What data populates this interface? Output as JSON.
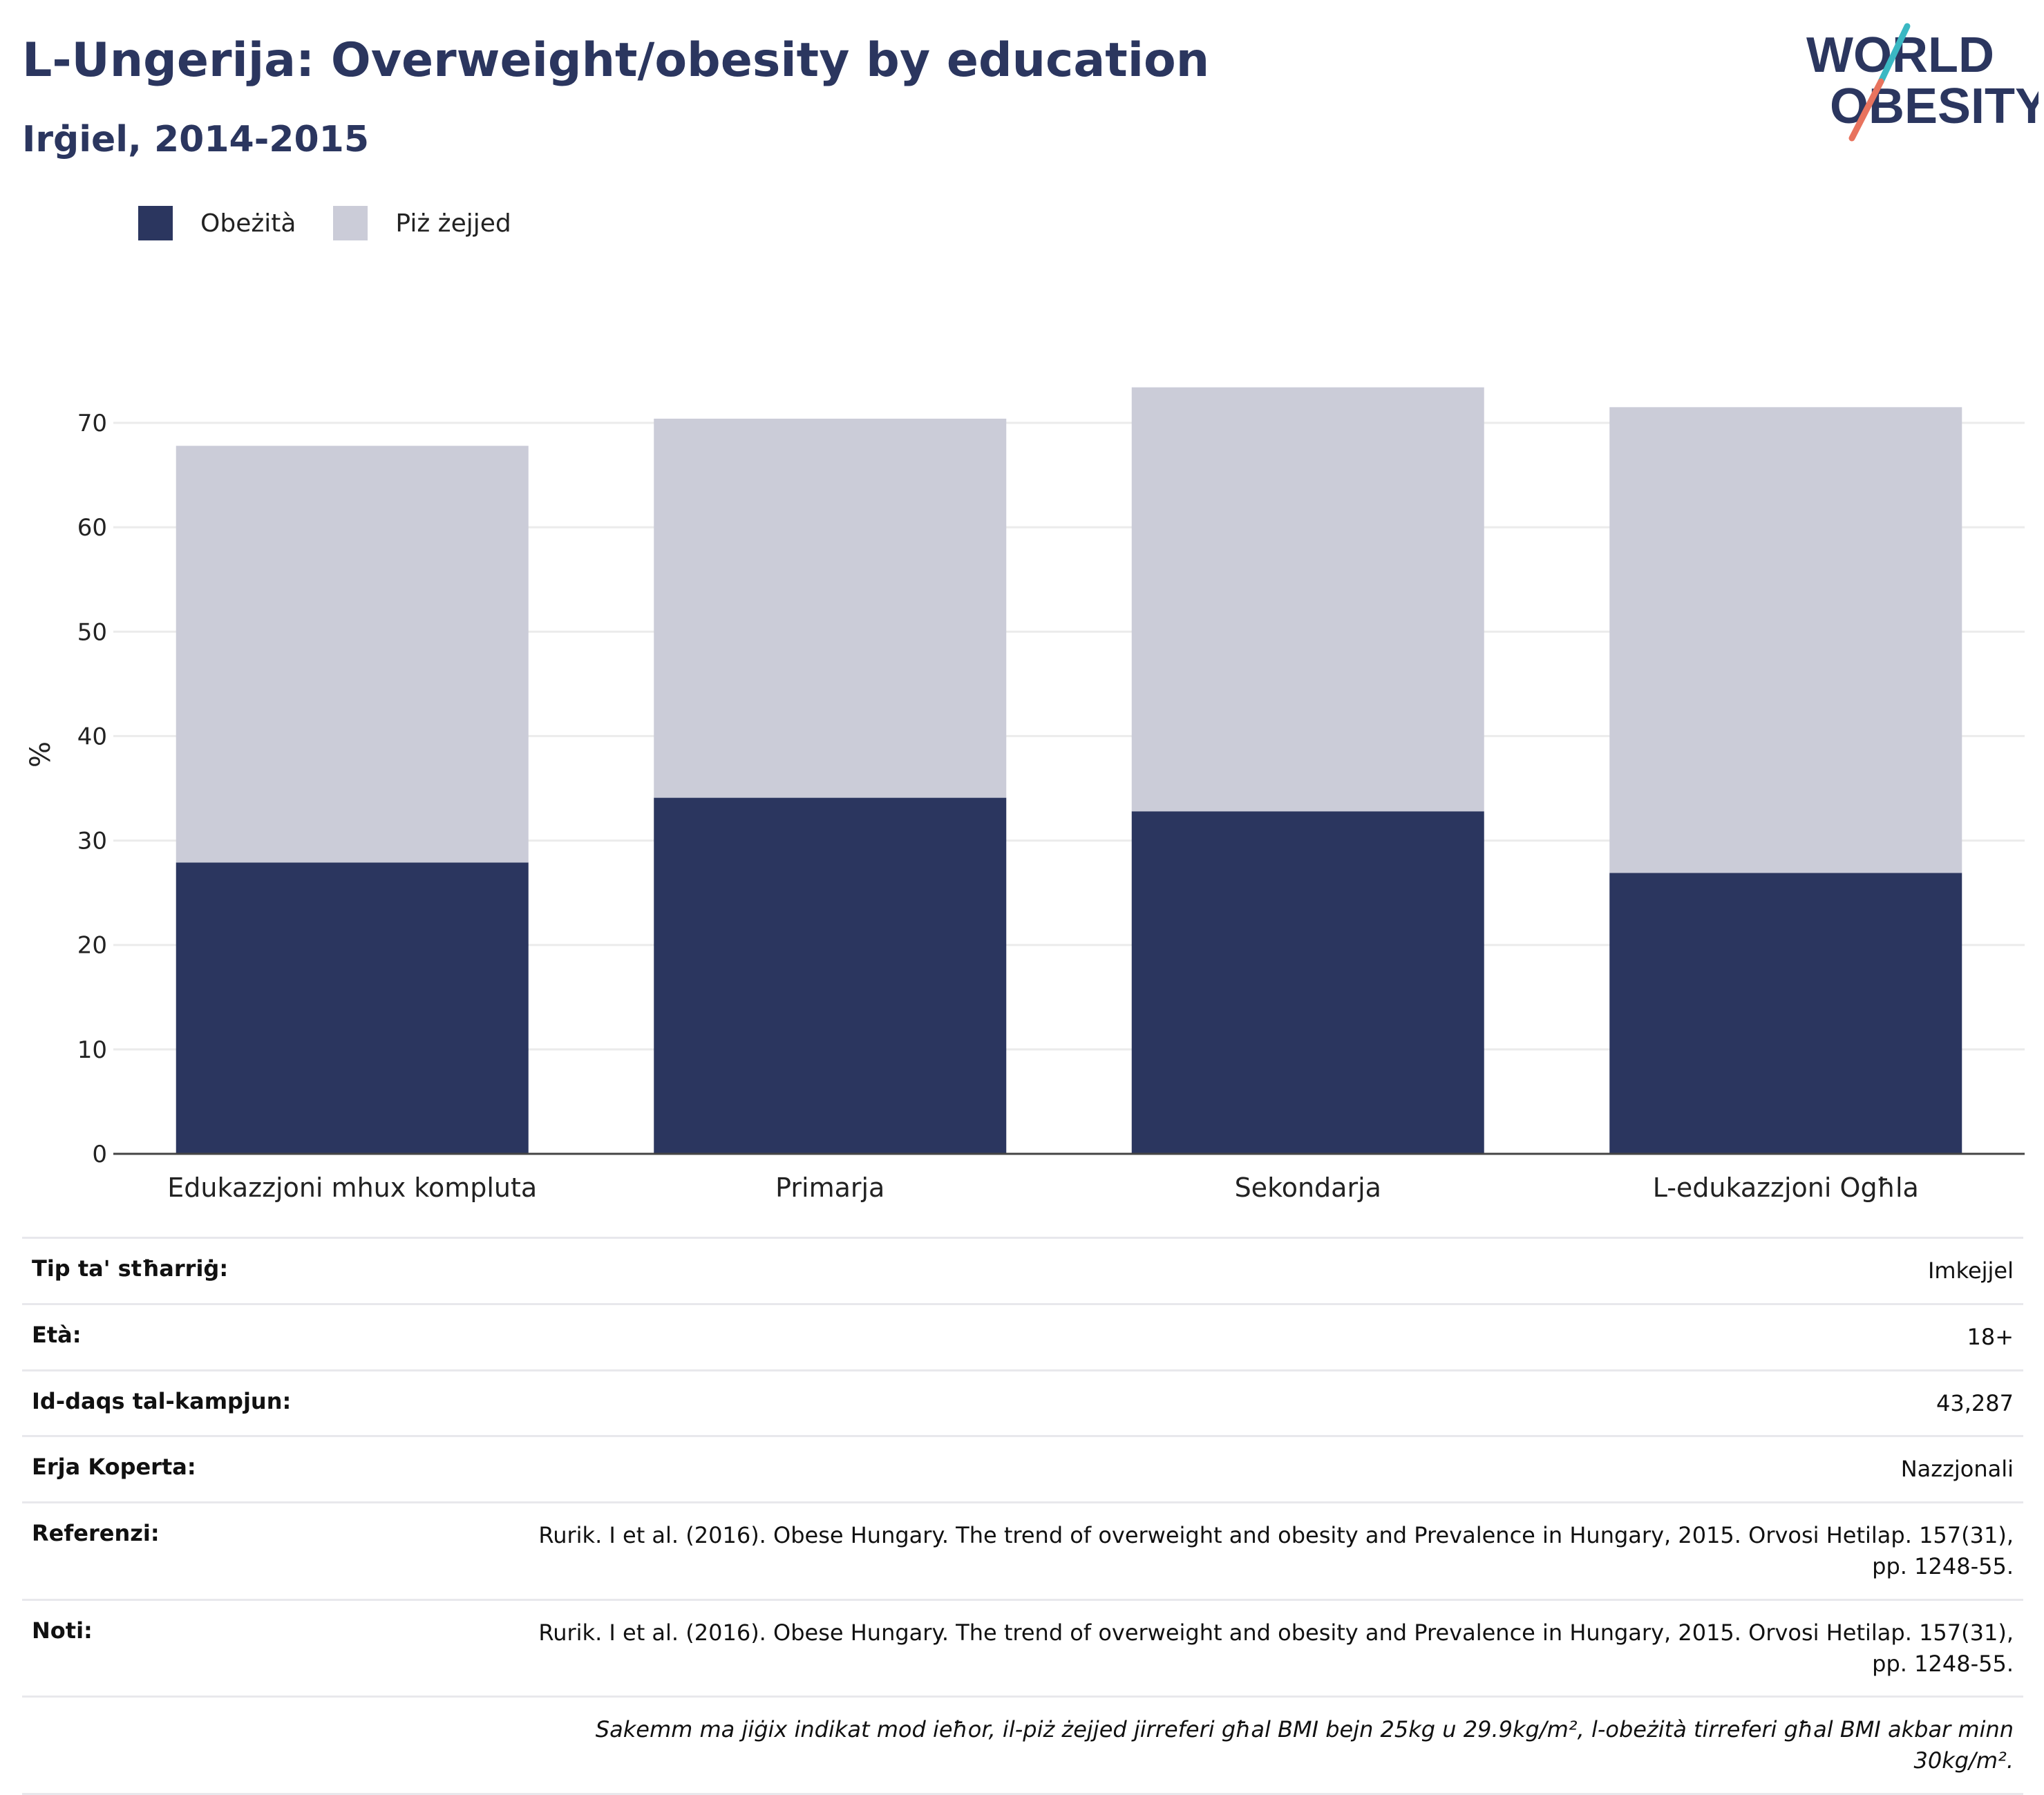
{
  "header": {
    "title": "L-Ungerija: Overweight/obesity by education",
    "subtitle": "Irġiel, 2014-2015"
  },
  "logo": {
    "line1": "WORLD",
    "line2": "OBESITY"
  },
  "colors": {
    "obesity": "#2b365f",
    "overweight": "#cbccd8",
    "title": "#2b365f",
    "logo_teal": "#3bb8c3",
    "logo_coral": "#e8735e"
  },
  "chart_data": {
    "type": "bar",
    "stacked": true,
    "categories": [
      "Edukazzjoni mhux kompluta",
      "Primarja",
      "Sekondarja",
      "L-edukazzjoni Ogħla"
    ],
    "series": [
      {
        "name": "Obeżità",
        "values": [
          27.9,
          34.1,
          32.8,
          26.9
        ]
      },
      {
        "name": "Piż żejjed",
        "values": [
          39.9,
          36.3,
          40.6,
          44.6
        ]
      }
    ],
    "ylabel": "%",
    "ylim": [
      0,
      75
    ],
    "yticks": [
      0,
      10,
      20,
      30,
      40,
      50,
      60,
      70
    ],
    "grid": true,
    "legend_position": "top-left"
  },
  "info": {
    "rows": [
      {
        "label": "Tip ta' stħarriġ:",
        "value": "Imkejjel"
      },
      {
        "label": "Età:",
        "value": "18+"
      },
      {
        "label": "Id-daqs tal-kampjun:",
        "value": "43,287"
      },
      {
        "label": "Erja Koperta:",
        "value": "Nazzjonali"
      },
      {
        "label": "Referenzi:",
        "value": "Rurik. I et al. (2016). Obese Hungary. The trend of overweight and obesity and Prevalence in Hungary, 2015. Orvosi Hetilap. 157(31), pp. 1248-55."
      },
      {
        "label": "Noti:",
        "value": "Rurik. I et al. (2016). Obese Hungary. The trend of overweight and obesity and Prevalence in Hungary, 2015. Orvosi Hetilap. 157(31), pp. 1248-55."
      }
    ],
    "footnote": "Sakemm ma jiġix indikat mod ieħor, il-piż żejjed jirreferi għal BMI bejn 25kg u 29.9kg/m², l-obeżità tirreferi għal BMI akbar minn 30kg/m²."
  }
}
